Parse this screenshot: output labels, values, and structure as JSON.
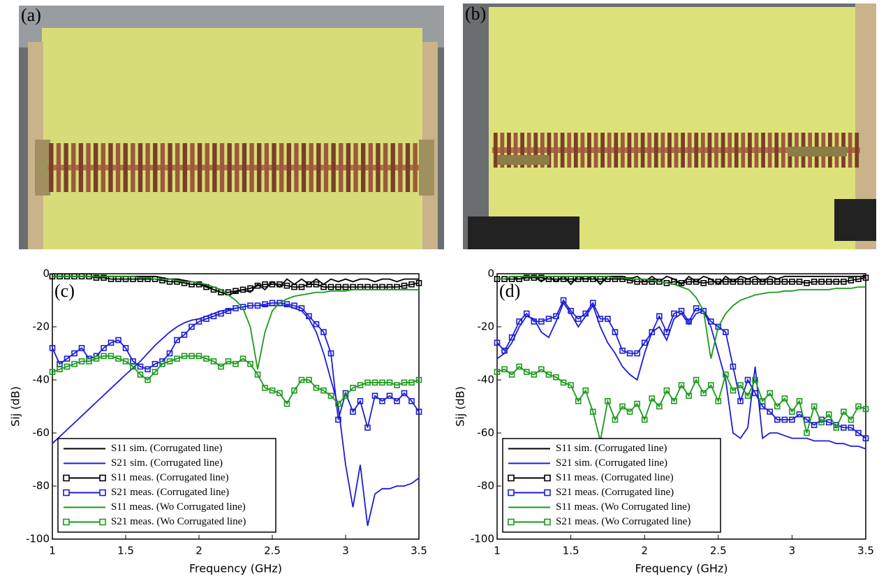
{
  "photos": [
    {
      "label": "(a)"
    },
    {
      "label": "(b)"
    }
  ],
  "chart_data": [
    {
      "type": "line",
      "panel_label": "(c)",
      "xlabel": "Frequency (GHz)",
      "ylabel": "Sij (dB)",
      "xlim": [
        1,
        3.5
      ],
      "ylim": [
        -100,
        0
      ],
      "xticks": [
        1,
        1.5,
        2,
        2.5,
        3,
        3.5
      ],
      "yticks": [
        -100,
        -80,
        -60,
        -40,
        -20,
        0
      ],
      "legend": "lower left",
      "x": [
        1,
        1.05,
        1.1,
        1.15,
        1.2,
        1.25,
        1.3,
        1.35,
        1.4,
        1.45,
        1.5,
        1.55,
        1.6,
        1.65,
        1.7,
        1.75,
        1.8,
        1.85,
        1.9,
        1.95,
        2,
        2.05,
        2.1,
        2.15,
        2.2,
        2.25,
        2.3,
        2.35,
        2.4,
        2.45,
        2.5,
        2.55,
        2.6,
        2.65,
        2.7,
        2.75,
        2.8,
        2.85,
        2.9,
        2.95,
        3,
        3.05,
        3.1,
        3.15,
        3.2,
        3.25,
        3.3,
        3.35,
        3.4,
        3.45,
        3.5
      ],
      "series": [
        {
          "name": "S11 sim. (Corrugated line)",
          "color": "#000000",
          "values": [
            -1,
            -1,
            -1,
            -1,
            -1,
            -1,
            -1,
            -1,
            -1,
            -1,
            -1,
            -1,
            -1,
            -1,
            -1,
            -1.5,
            -2,
            -2,
            -2.5,
            -3,
            -3.5,
            -4.5,
            -6,
            -7,
            -8,
            -7,
            -6,
            -7,
            -4,
            -6,
            -3,
            -5,
            -2,
            -4,
            -2,
            -4,
            -2,
            -4,
            -2,
            -3,
            -2,
            -3,
            -2,
            -2,
            -3,
            -2,
            -2,
            -3,
            -2,
            -2,
            -2
          ]
        },
        {
          "name": "S21 sim. (Corrugated line)",
          "color": "#1c1cd6",
          "values": [
            -64,
            -61.4,
            -58.8,
            -56.2,
            -53.6,
            -51,
            -48.4,
            -45.8,
            -43.2,
            -40.6,
            -38,
            -35.5,
            -33,
            -30,
            -27,
            -24.5,
            -22,
            -20,
            -18.5,
            -17.5,
            -17,
            -16,
            -15,
            -14,
            -13.5,
            -13,
            -12.5,
            -12,
            -12,
            -12,
            -12,
            -12,
            -12,
            -13,
            -14,
            -17,
            -22,
            -30,
            -40,
            -50,
            -72,
            -88,
            -72,
            -95,
            -83,
            -81,
            -81,
            -80,
            -80,
            -79,
            -77
          ]
        },
        {
          "name": "S11 meas. (Corrugated line)",
          "color": "#000000",
          "marker": "square",
          "values": [
            -1,
            -1,
            -1,
            -1,
            -1,
            -1,
            -1.5,
            -1.5,
            -2,
            -2,
            -2,
            -2,
            -2,
            -2,
            -2,
            -2.5,
            -3,
            -3,
            -3.5,
            -4,
            -4,
            -5,
            -6,
            -7,
            -7,
            -6.5,
            -6,
            -5.5,
            -4.5,
            -4,
            -4,
            -4,
            -4.5,
            -5,
            -5,
            -4,
            -4,
            -5,
            -5,
            -5,
            -5,
            -5,
            -5,
            -5,
            -5,
            -5,
            -5,
            -5,
            -4.5,
            -4,
            -3.5
          ]
        },
        {
          "name": "S21 meas. (Corrugated line)",
          "color": "#1c1cd6",
          "marker": "square",
          "values": [
            -28,
            -34,
            -32,
            -30,
            -28,
            -32,
            -31,
            -28,
            -26,
            -25,
            -28,
            -33,
            -35,
            -36,
            -34,
            -33,
            -30,
            -25,
            -23,
            -20,
            -18,
            -17,
            -16,
            -15,
            -14,
            -13,
            -12.5,
            -12,
            -12,
            -11.5,
            -11,
            -11,
            -11.5,
            -12,
            -13,
            -16,
            -19,
            -22,
            -30,
            -55,
            -45,
            -52,
            -48,
            -58,
            -46,
            -48,
            -46,
            -48,
            -45,
            -48,
            -52
          ]
        },
        {
          "name": "S11 meas. (Wo Corrugated line)",
          "color": "#1a9a1a",
          "values": [
            -1,
            -1,
            -1,
            -1,
            -1,
            -1,
            -1,
            -1,
            -1,
            -1,
            -1,
            -1,
            -1.5,
            -1.5,
            -2,
            -2,
            -2,
            -2.5,
            -3,
            -3,
            -3.5,
            -4,
            -5,
            -6,
            -8,
            -10,
            -13,
            -20,
            -36,
            -22,
            -14,
            -11,
            -9.5,
            -8.5,
            -8,
            -7.5,
            -7,
            -7,
            -6.5,
            -6.5,
            -6.5,
            -6,
            -6,
            -6,
            -6,
            -6,
            -6,
            -6,
            -6,
            -6,
            -6
          ]
        },
        {
          "name": "S21 meas. (Wo Corrugated line)",
          "color": "#1a9a1a",
          "marker": "square",
          "values": [
            -37,
            -36,
            -35,
            -34,
            -33,
            -33,
            -32,
            -31,
            -31,
            -32,
            -33,
            -35,
            -38,
            -40,
            -37,
            -34,
            -33,
            -32,
            -31,
            -31,
            -31,
            -32,
            -33,
            -35,
            -33,
            -34,
            -32,
            -34,
            -38,
            -43,
            -44,
            -45,
            -49,
            -44,
            -40,
            -40,
            -43,
            -44,
            -46,
            -49,
            -46,
            -43,
            -42,
            -41,
            -41,
            -41,
            -41,
            -42,
            -41,
            -41,
            -40
          ]
        }
      ]
    },
    {
      "type": "line",
      "panel_label": "(d)",
      "xlabel": "Frequency (GHz)",
      "ylabel": "Sij (dB)",
      "xlim": [
        1,
        3.5
      ],
      "ylim": [
        -100,
        0
      ],
      "xticks": [
        1,
        1.5,
        2,
        2.5,
        3,
        3.5
      ],
      "yticks": [
        -100,
        -80,
        -60,
        -40,
        -20,
        0
      ],
      "legend": "lower left",
      "x": [
        1,
        1.05,
        1.1,
        1.15,
        1.2,
        1.25,
        1.3,
        1.35,
        1.4,
        1.45,
        1.5,
        1.55,
        1.6,
        1.65,
        1.7,
        1.75,
        1.8,
        1.85,
        1.9,
        1.95,
        2,
        2.05,
        2.1,
        2.15,
        2.2,
        2.25,
        2.3,
        2.35,
        2.4,
        2.45,
        2.5,
        2.55,
        2.6,
        2.65,
        2.7,
        2.75,
        2.8,
        2.85,
        2.9,
        2.95,
        3,
        3.05,
        3.1,
        3.15,
        3.2,
        3.25,
        3.3,
        3.35,
        3.4,
        3.45,
        3.5
      ],
      "series": [
        {
          "name": "S11 sim. (Corrugated line)",
          "color": "#000000",
          "values": [
            -2,
            -2,
            -1,
            -2,
            -1,
            -1,
            -3,
            -1,
            -3,
            -1,
            -4,
            -1,
            -2,
            -1,
            -4,
            -1,
            -1,
            -1,
            -2,
            -1,
            -3,
            -1,
            -3,
            -1,
            -2,
            -4,
            -1,
            -3,
            -1,
            -2,
            -4,
            -1,
            -3,
            -1,
            -2,
            -1,
            -3,
            -1,
            -2,
            -1,
            -1,
            -1,
            -1,
            -1,
            -1,
            -1,
            -1,
            -1,
            -1,
            -1,
            -1
          ]
        },
        {
          "name": "S21 sim. (Corrugated line)",
          "color": "#1c1cd6",
          "values": [
            -32,
            -30,
            -26,
            -20,
            -16,
            -17,
            -22,
            -24,
            -18,
            -11,
            -15,
            -20,
            -16,
            -12,
            -20,
            -26,
            -30,
            -35,
            -38,
            -40,
            -30,
            -22,
            -20,
            -25,
            -17,
            -15,
            -19,
            -15,
            -14,
            -20,
            -30,
            -40,
            -60,
            -62,
            -58,
            -35,
            -62,
            -60,
            -60,
            -61,
            -62,
            -62,
            -62,
            -63,
            -63,
            -63,
            -64,
            -64,
            -65,
            -65,
            -66
          ]
        },
        {
          "name": "S11 meas. (Corrugated line)",
          "color": "#000000",
          "marker": "square",
          "values": [
            -2,
            -2,
            -2,
            -2,
            -1.5,
            -1.5,
            -1.5,
            -2,
            -2,
            -2,
            -2,
            -2,
            -2,
            -2,
            -2,
            -2,
            -2,
            -2,
            -2.5,
            -3,
            -3,
            -3,
            -3,
            -3.5,
            -3,
            -3.5,
            -3,
            -3,
            -3.5,
            -3,
            -3,
            -3,
            -3,
            -3,
            -3,
            -3,
            -3,
            -3,
            -3,
            -3,
            -3,
            -3,
            -3.5,
            -3,
            -3,
            -3,
            -3,
            -3,
            -2.5,
            -2,
            -1.5
          ]
        },
        {
          "name": "S21 meas. (Corrugated line)",
          "color": "#1c1cd6",
          "marker": "square",
          "values": [
            -26,
            -29,
            -24,
            -18,
            -15,
            -18,
            -18,
            -17,
            -16,
            -10,
            -14,
            -17,
            -15,
            -11,
            -17,
            -17,
            -22,
            -29,
            -30,
            -30,
            -26,
            -22,
            -16,
            -22,
            -15,
            -14,
            -18,
            -13,
            -14,
            -18,
            -20,
            -22,
            -35,
            -48,
            -40,
            -45,
            -50,
            -52,
            -55,
            -55,
            -55,
            -53,
            -55,
            -57,
            -55,
            -56,
            -57,
            -58,
            -58,
            -60,
            -62
          ]
        },
        {
          "name": "S11 meas. (Wo Corrugated line)",
          "color": "#1a9a1a",
          "values": [
            -2,
            -2,
            -1,
            -1,
            -1,
            -1,
            -1,
            -1,
            -1,
            -1,
            -1,
            -1,
            -1,
            -1,
            -1,
            -1,
            -1.5,
            -1.5,
            -2,
            -2,
            -2,
            -2.5,
            -3,
            -3.5,
            -4,
            -5,
            -6,
            -9,
            -14,
            -32,
            -20,
            -15,
            -12,
            -10,
            -9,
            -8,
            -7.5,
            -7,
            -7,
            -6.5,
            -6.5,
            -6,
            -6,
            -6,
            -6,
            -6,
            -5.5,
            -5.5,
            -5.5,
            -5,
            -5
          ]
        },
        {
          "name": "S21 meas. (Wo Corrugated line)",
          "color": "#1a9a1a",
          "marker": "square",
          "values": [
            -37,
            -36,
            -38,
            -35,
            -37,
            -38,
            -36,
            -38,
            -39,
            -41,
            -42,
            -48,
            -44,
            -52,
            -63,
            -48,
            -55,
            -50,
            -52,
            -49,
            -55,
            -47,
            -50,
            -44,
            -48,
            -42,
            -46,
            -40,
            -45,
            -42,
            -48,
            -38,
            -44,
            -42,
            -46,
            -40,
            -48,
            -45,
            -50,
            -47,
            -52,
            -48,
            -60,
            -50,
            -56,
            -53,
            -58,
            -52,
            -55,
            -50,
            -51
          ]
        }
      ]
    }
  ]
}
